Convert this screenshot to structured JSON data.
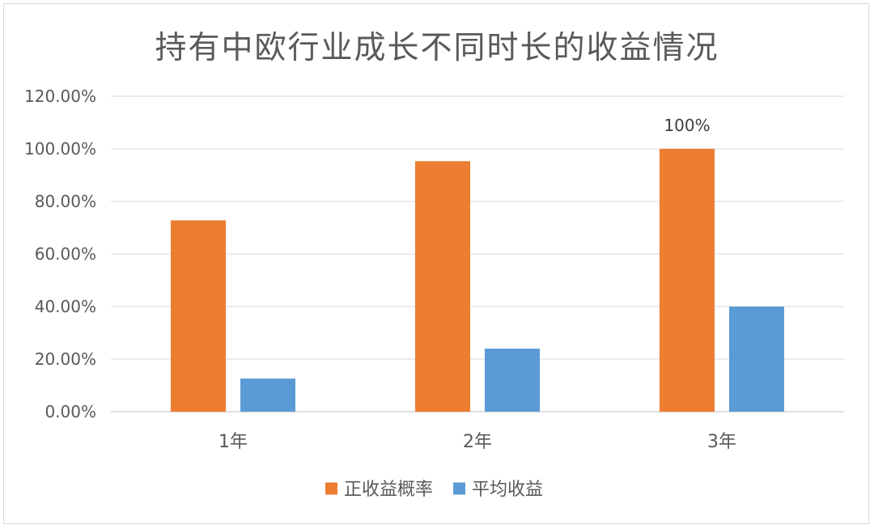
{
  "chart_data": {
    "type": "bar",
    "title": "持有中欧行业成长不同时长的收益情况",
    "categories": [
      "1年",
      "2年",
      "3年"
    ],
    "series": [
      {
        "name": "正收益概率",
        "values": [
          72.8,
          95.3,
          100
        ],
        "color": "#ed7d31"
      },
      {
        "name": "平均收益",
        "values": [
          12.6,
          24.0,
          40.0
        ],
        "color": "#5b9bd5"
      }
    ],
    "y_ticks": [
      "0.00%",
      "20.00%",
      "40.00%",
      "60.00%",
      "80.00%",
      "100.00%",
      "120.00%"
    ],
    "ylim": [
      0,
      120
    ],
    "grid": true,
    "legend_position": "bottom",
    "data_labels": [
      {
        "series": 0,
        "category": 2,
        "text": "100%"
      }
    ]
  }
}
